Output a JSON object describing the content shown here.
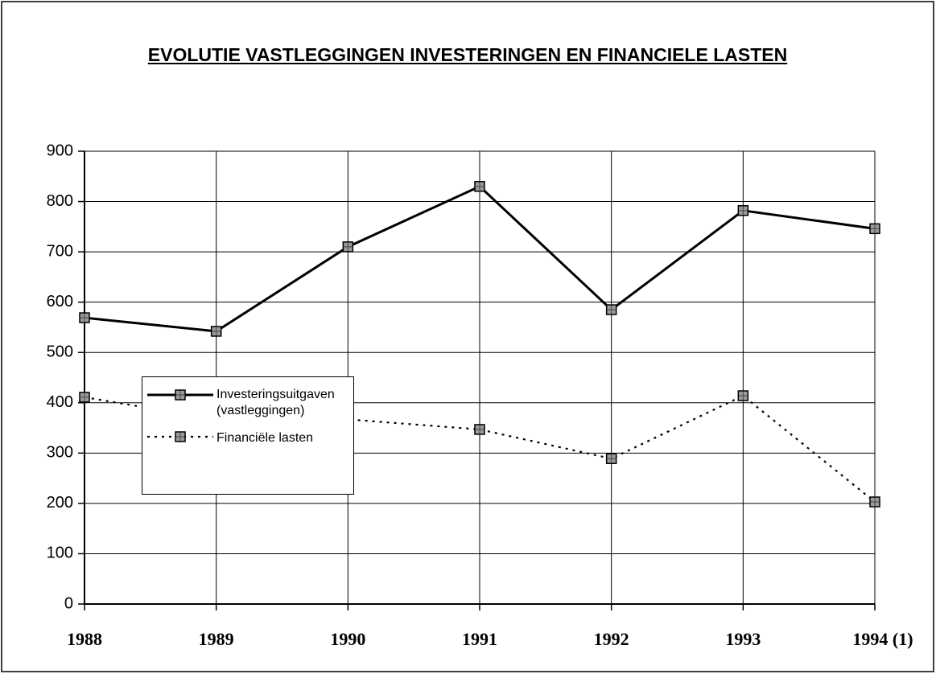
{
  "chart_data": {
    "type": "line",
    "title": "EVOLUTIE VASTLEGGINGEN INVESTERINGEN EN FINANCIELE LASTEN",
    "categories": [
      "1988",
      "1989",
      "1990",
      "1991",
      "1992",
      "1993",
      "1994 (1)"
    ],
    "series": [
      {
        "name": "Investeringsuitgaven (vastleggingen)",
        "color": "#000000",
        "dashed": false,
        "values": [
          569,
          542,
          710,
          830,
          585,
          782,
          746
        ]
      },
      {
        "name": "Financiële lasten",
        "color": "#000000",
        "dashed": true,
        "values": [
          411,
          367,
          367,
          347,
          289,
          414,
          203
        ]
      }
    ],
    "ylim": [
      0,
      900
    ],
    "yticks": [
      0,
      100,
      200,
      300,
      400,
      500,
      600,
      700,
      800,
      900
    ],
    "grid": true
  }
}
